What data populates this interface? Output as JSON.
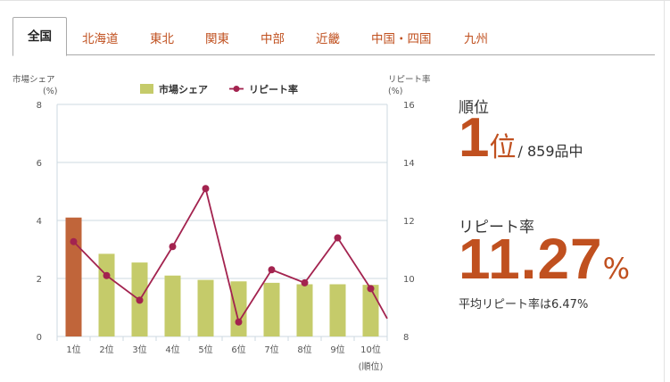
{
  "tabs": [
    {
      "label": "全国",
      "active": true
    },
    {
      "label": "北海道",
      "active": false
    },
    {
      "label": "東北",
      "active": false
    },
    {
      "label": "関東",
      "active": false
    },
    {
      "label": "中部",
      "active": false
    },
    {
      "label": "近畿",
      "active": false
    },
    {
      "label": "中国・四国",
      "active": false
    },
    {
      "label": "九州",
      "active": false
    }
  ],
  "stats": {
    "rank_label": "順位",
    "rank_value": "1",
    "rank_unit": "位",
    "rank_of": "/ 859品中",
    "rate_label": "リピート率",
    "rate_value": "11.27",
    "rate_unit": "%",
    "average_text": "平均リピート率は6.47%"
  },
  "colors": {
    "accent": "#c0501f",
    "bar_highlight": "#c0653a",
    "bar": "#c5cb6a",
    "line": "#a3234f",
    "grid": "#cdd9e0"
  },
  "chart_data": {
    "type": "bar",
    "categories": [
      "1位",
      "2位",
      "3位",
      "4位",
      "5位",
      "6位",
      "7位",
      "8位",
      "9位",
      "10位"
    ],
    "xlabel": "(順位)",
    "left_axis_title": [
      "市場シェア",
      "(%)"
    ],
    "right_axis_title": [
      "リピート率",
      "(%)"
    ],
    "ylim": [
      0,
      8
    ],
    "y2lim": [
      8,
      16
    ],
    "yticks": [
      0,
      2,
      4,
      6,
      8
    ],
    "y2ticks": [
      8,
      10,
      12,
      14,
      16
    ],
    "grid": true,
    "legend_position": "top-center",
    "highlight_index": 0,
    "series": [
      {
        "name": "市場シェア",
        "type": "bar",
        "axis": "left",
        "values": [
          4.1,
          2.85,
          2.55,
          2.1,
          1.95,
          1.9,
          1.85,
          1.8,
          1.8,
          1.78
        ]
      },
      {
        "name": "リピート率",
        "type": "line",
        "axis": "right",
        "values": [
          11.27,
          10.1,
          9.25,
          11.1,
          13.1,
          8.5,
          10.3,
          9.85,
          11.4,
          9.65
        ]
      }
    ]
  }
}
